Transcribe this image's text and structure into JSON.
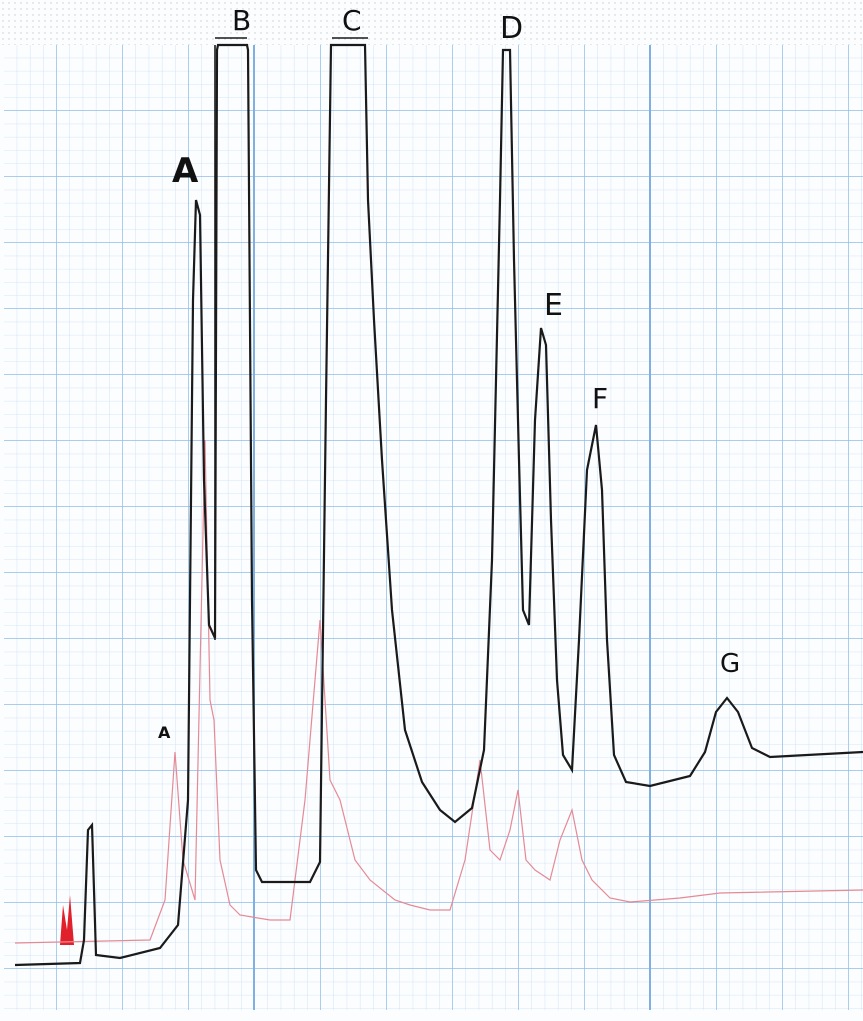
{
  "peak_labels": [
    "A",
    "B",
    "C",
    "D",
    "E",
    "F",
    "G"
  ],
  "secondary_labels": [
    "A"
  ]
}
